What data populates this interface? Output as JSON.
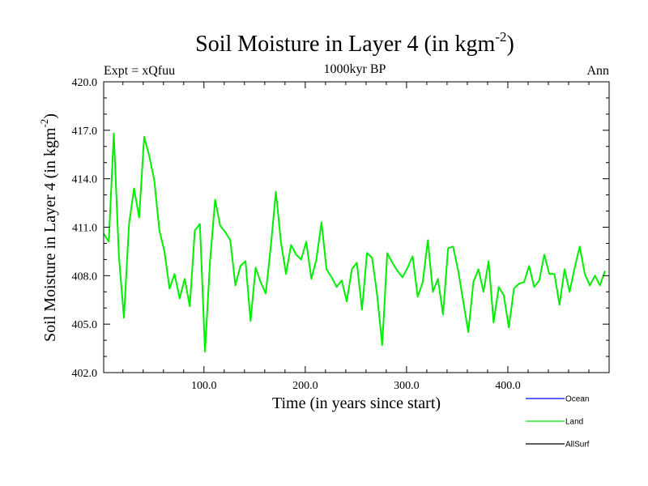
{
  "chart_data": {
    "type": "line",
    "title_main": "Soil Moisture in Layer 4 (in kgm",
    "title_sup": "-2",
    "title_close": ")",
    "subtitle": "1000kyr BP",
    "left_label": "Expt = xQfuu",
    "right_label": "Ann",
    "xlabel": "Time (in years since start)",
    "ylabel_main": "Soil Moisture in Layer 4 (in kgm",
    "ylabel_sup": "-2",
    "ylabel_close": ")",
    "xlim": [
      1,
      500
    ],
    "ylim": [
      402.0,
      420.0
    ],
    "x_ticks": [
      100,
      200,
      300,
      400
    ],
    "x_tick_labels": [
      "100.0",
      "200.0",
      "300.0",
      "400.0"
    ],
    "y_ticks": [
      402,
      405,
      408,
      411,
      414,
      417,
      420
    ],
    "y_tick_labels": [
      "402.0",
      "405.0",
      "408.0",
      "411.0",
      "414.0",
      "417.0",
      "420.0"
    ],
    "series": [
      {
        "name": "Land",
        "color": "#00ee00",
        "x_start": 1,
        "x_step": 5,
        "values": [
          410.6,
          410.1,
          416.8,
          409.2,
          405.4,
          411.2,
          413.4,
          411.6,
          416.6,
          415.4,
          413.9,
          410.8,
          409.5,
          407.2,
          408.1,
          406.6,
          407.8,
          406.1,
          410.8,
          411.2,
          403.3,
          408.9,
          412.7,
          411.1,
          410.7,
          410.2,
          407.4,
          408.6,
          408.9,
          405.2,
          408.5,
          407.6,
          406.9,
          409.8,
          413.2,
          410.1,
          408.1,
          409.9,
          409.3,
          409.0,
          410.1,
          407.8,
          409.0,
          411.3,
          408.4,
          407.9,
          407.3,
          407.7,
          406.4,
          408.4,
          408.8,
          405.9,
          409.4,
          409.1,
          406.8,
          403.7,
          409.4,
          408.8,
          408.3,
          407.9,
          408.5,
          409.2,
          406.7,
          407.6,
          410.2,
          407.0,
          407.8,
          405.6,
          409.7,
          409.8,
          408.3,
          406.4,
          404.5,
          407.6,
          408.4,
          407.0,
          408.9,
          405.1,
          407.3,
          406.8,
          404.8,
          407.2,
          407.5,
          407.6,
          408.6,
          407.3,
          407.7,
          409.3,
          408.1,
          408.1,
          406.2,
          408.4,
          407.0,
          408.5,
          409.8,
          408.1,
          407.4,
          408.0,
          407.4,
          408.3
        ]
      },
      {
        "name": "Ocean",
        "color": "#0000ff",
        "values": []
      },
      {
        "name": "AllSurf",
        "color": "#000000",
        "values": []
      }
    ],
    "legend": [
      {
        "label": "Ocean",
        "color": "#0000ff"
      },
      {
        "label": "Land",
        "color": "#00ee00"
      },
      {
        "label": "AllSurf",
        "color": "#000000"
      }
    ]
  }
}
